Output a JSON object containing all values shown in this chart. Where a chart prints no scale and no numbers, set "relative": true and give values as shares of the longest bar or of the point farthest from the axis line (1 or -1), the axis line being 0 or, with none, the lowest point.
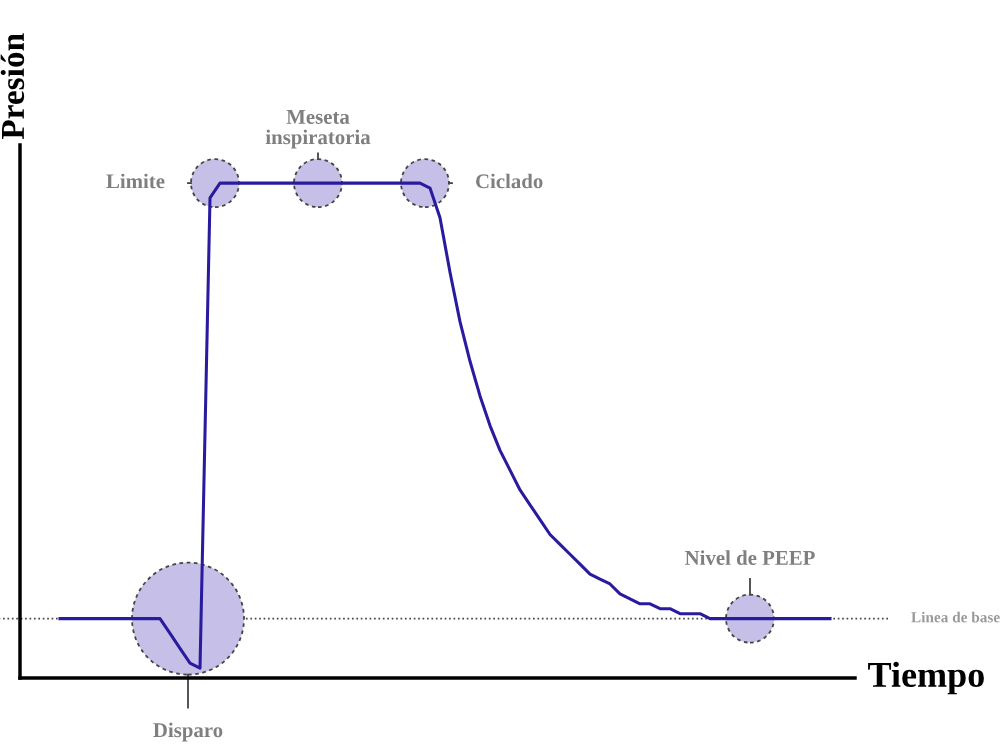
{
  "chart_data": {
    "type": "line",
    "relative": true,
    "xlabel": "Tiempo",
    "ylabel": "Presión",
    "categories": [
      null,
      null,
      null,
      null,
      null,
      null,
      null,
      null,
      null,
      null,
      null,
      null,
      null,
      null,
      null,
      null,
      null,
      null,
      null,
      null,
      null,
      null,
      null,
      null,
      null,
      null,
      null,
      null,
      null,
      null,
      null,
      null,
      null,
      null,
      null,
      null,
      null,
      null,
      null,
      null,
      null,
      null,
      null,
      null,
      null,
      null,
      null,
      null,
      null,
      null,
      null,
      null,
      null,
      null,
      null,
      null,
      null,
      null,
      null,
      null,
      null,
      null,
      null,
      null,
      null,
      null,
      null,
      null,
      null,
      null,
      null,
      null,
      null,
      null,
      null,
      null,
      null,
      null
    ],
    "series": [
      {
        "color": "#2a1b9e",
        "values": [
          0.12,
          0.12,
          0.12,
          0.12,
          0.12,
          0.12,
          0.12,
          0.12,
          0.12,
          0.12,
          0.12,
          0.09,
          0.06,
          0.03,
          0.02,
          0.97,
          1,
          1,
          1,
          1,
          1,
          1,
          1,
          1,
          1,
          1,
          1,
          1,
          1,
          1,
          1,
          1,
          1,
          1,
          1,
          1,
          1,
          0.99,
          0.93,
          0.82,
          0.72,
          0.64,
          0.57,
          0.51,
          0.46,
          0.42,
          0.38,
          0.35,
          0.32,
          0.29,
          0.27,
          0.25,
          0.23,
          0.21,
          0.2,
          0.19,
          0.17,
          0.16,
          0.15,
          0.15,
          0.14,
          0.14,
          0.13,
          0.13,
          0.13,
          0.12,
          0.12,
          0.12,
          0.12,
          0.12,
          0.12,
          0.12,
          0.12,
          0.12,
          0.12,
          0.12,
          0.12,
          0.12
        ]
      }
    ],
    "ref_lines": [
      {
        "axis": "y",
        "value": 0.12,
        "label": "Linea de base",
        "color": "#444444",
        "line_style": "dotted"
      }
    ],
    "annotations": [
      "Limite",
      "Meseta\ninspiratoria",
      "Ciclado",
      "Disparo",
      "Nivel de PEEP"
    ],
    "legend": false,
    "marker": "none",
    "line_style": "solid"
  }
}
